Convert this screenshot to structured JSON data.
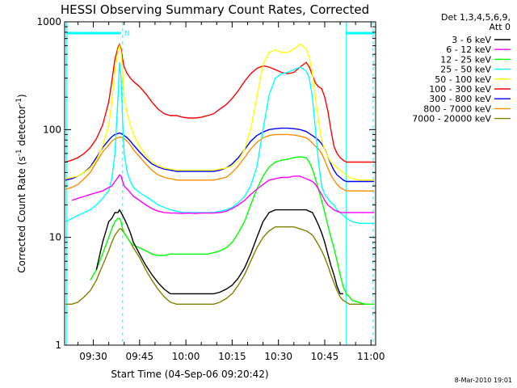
{
  "chart_data": {
    "type": "line",
    "title": "HESSI Observing Summary Count Rates, Corrected",
    "xlabel": "Start Time (04-Sep-06 09:20:42)",
    "ylabel_main": "Corrected Count Rate (s",
    "ylabel_sup": "-1",
    "ylabel_mid": " detector",
    "ylabel_sup2": "-1",
    "ylabel_end": ")",
    "x_ticks": [
      "09:30",
      "09:45",
      "10:00",
      "10:15",
      "10:30",
      "10:45",
      "11:00"
    ],
    "x_tick_minutes": [
      570,
      585,
      600,
      615,
      630,
      645,
      660
    ],
    "xlim_minutes": [
      560.7,
      661.5
    ],
    "ylog": true,
    "ylim": [
      1,
      1000
    ],
    "y_ticks": [
      "1",
      "10",
      "100",
      "1000"
    ],
    "y_tick_values": [
      1,
      10,
      100,
      1000
    ],
    "legend_header": [
      "Det 1,3,4,5,6,9,",
      "Att 0"
    ],
    "footer_date": "8-Mar-2010 19:01",
    "flag_label": "N",
    "flag_bars": [
      [
        561.5,
        579.0
      ],
      [
        651.8,
        661.0
      ]
    ],
    "vlines_solid": [
      561.3,
      652.0
    ],
    "vlines_dashed": [
      579.5,
      660.7
    ],
    "x": [
      561,
      563,
      565,
      567,
      569,
      571,
      573,
      575,
      576,
      577,
      578,
      578.5,
      579,
      579.5,
      580,
      581,
      582,
      583,
      585,
      587,
      589,
      591,
      593,
      595,
      597,
      599,
      601,
      603,
      605,
      607,
      609,
      611,
      613,
      615,
      617,
      619,
      621,
      623,
      625,
      627,
      629,
      631,
      633,
      635,
      637,
      639,
      640,
      641,
      642,
      643,
      644,
      645,
      646,
      647,
      648,
      649,
      650,
      651,
      652,
      653,
      654,
      656,
      658,
      660,
      661
    ],
    "series": [
      {
        "name": "3 - 6 keV",
        "color": "#000000",
        "values": [
          null,
          null,
          null,
          null,
          null,
          5,
          9,
          14,
          15,
          17,
          17,
          18,
          17,
          16,
          15,
          13,
          11,
          9,
          7,
          5.5,
          4.5,
          3.8,
          3.3,
          3.0,
          3.0,
          3.0,
          3.0,
          3.0,
          3.0,
          3.0,
          3.0,
          3.1,
          3.3,
          3.6,
          4.2,
          5.2,
          7,
          10,
          14,
          17,
          18,
          18,
          18,
          18,
          18,
          18,
          17.5,
          17,
          15,
          13,
          11,
          9,
          7,
          5.5,
          4.5,
          3.5,
          3.0,
          3.0,
          null,
          null,
          null,
          null,
          null,
          null,
          null
        ]
      },
      {
        "name": "6 - 12 keV",
        "color": "#ff00ff",
        "values": [
          null,
          22,
          23,
          24,
          25,
          26,
          27,
          29,
          30,
          33,
          36,
          38,
          37,
          33,
          30,
          28,
          26,
          24,
          22,
          20,
          18.5,
          17.5,
          17.0,
          16.8,
          16.8,
          16.7,
          16.8,
          16.7,
          16.8,
          16.8,
          16.8,
          17,
          17.5,
          18.5,
          20,
          22,
          25,
          28,
          31,
          34,
          35,
          36,
          36,
          37,
          37,
          35,
          34,
          33,
          31,
          28,
          25,
          22,
          20,
          19,
          18,
          17.5,
          17,
          17,
          17,
          17,
          17,
          17,
          17,
          17,
          17
        ]
      },
      {
        "name": "12 - 25 keV",
        "color": "#00ff00",
        "values": [
          null,
          null,
          null,
          null,
          4,
          5,
          7,
          10,
          12,
          14,
          15,
          15,
          14,
          12,
          11,
          10,
          9,
          8.5,
          8,
          7.5,
          7,
          6.8,
          6.8,
          7,
          7,
          7,
          7,
          7,
          7,
          7,
          7.2,
          7.5,
          8,
          9,
          11,
          14,
          20,
          28,
          37,
          45,
          50,
          52,
          53,
          55,
          56,
          55,
          50,
          43,
          35,
          28,
          22,
          17,
          13,
          10,
          8,
          6,
          4.5,
          3.5,
          3,
          2.8,
          2.6,
          2.5,
          2.4,
          2.4,
          2.4
        ]
      },
      {
        "name": "25 - 50 keV",
        "color": "#00ffff",
        "values": [
          14,
          15,
          16,
          17,
          18,
          20,
          23,
          27,
          35,
          60,
          200,
          420,
          300,
          120,
          60,
          40,
          33,
          29,
          26,
          24,
          22,
          20,
          19,
          18,
          17.5,
          17,
          17,
          17,
          17,
          17,
          17,
          17.5,
          18,
          19,
          21,
          24,
          30,
          45,
          100,
          210,
          300,
          330,
          340,
          360,
          380,
          350,
          300,
          200,
          100,
          50,
          30,
          25,
          23,
          21,
          20,
          18,
          17,
          16,
          15,
          14.5,
          14,
          13.5,
          13.5,
          13.5,
          13.5
        ]
      },
      {
        "name": "50 - 100 keV",
        "color": "#ffff00",
        "values": [
          35,
          36,
          37,
          40,
          44,
          52,
          70,
          110,
          180,
          350,
          550,
          600,
          520,
          350,
          200,
          140,
          110,
          90,
          70,
          58,
          50,
          46,
          44,
          43,
          42,
          42,
          42,
          42,
          42,
          42,
          42,
          43,
          44,
          46,
          52,
          65,
          100,
          200,
          400,
          520,
          550,
          520,
          520,
          560,
          620,
          560,
          470,
          330,
          200,
          120,
          80,
          65,
          56,
          50,
          47,
          44,
          42,
          40,
          38,
          36,
          35,
          34,
          34,
          34,
          34
        ]
      },
      {
        "name": "100 - 300 keV",
        "color": "#ff0000",
        "values": [
          50,
          52,
          55,
          60,
          68,
          82,
          110,
          180,
          280,
          450,
          580,
          620,
          560,
          450,
          380,
          330,
          300,
          280,
          250,
          215,
          180,
          155,
          140,
          135,
          135,
          130,
          128,
          128,
          130,
          135,
          140,
          155,
          170,
          195,
          230,
          280,
          330,
          370,
          390,
          380,
          360,
          340,
          330,
          340,
          380,
          420,
          380,
          320,
          270,
          250,
          240,
          200,
          150,
          100,
          70,
          60,
          55,
          52,
          50,
          50,
          50,
          50,
          50,
          50,
          50
        ]
      },
      {
        "name": "300 - 800 keV",
        "color": "#0000ff",
        "values": [
          34,
          35,
          37,
          40,
          45,
          55,
          68,
          80,
          86,
          90,
          92,
          93,
          92,
          90,
          88,
          84,
          78,
          72,
          62,
          54,
          48,
          45,
          43,
          42,
          41,
          41,
          41,
          41,
          41,
          41,
          41,
          42,
          44,
          48,
          55,
          65,
          78,
          88,
          95,
          100,
          102,
          103,
          103,
          102,
          100,
          96,
          92,
          88,
          84,
          80,
          74,
          66,
          56,
          48,
          42,
          38,
          36,
          34,
          33,
          33,
          33,
          33,
          33,
          33,
          33
        ]
      },
      {
        "name": "800 - 7000 keV",
        "color": "#ff8c00",
        "values": [
          28,
          29,
          31,
          35,
          40,
          50,
          62,
          72,
          78,
          82,
          84,
          85,
          85,
          84,
          82,
          78,
          72,
          65,
          56,
          48,
          42,
          38,
          36,
          35,
          34,
          34,
          34,
          34,
          34,
          34,
          34,
          35,
          36,
          40,
          46,
          55,
          66,
          76,
          84,
          88,
          90,
          90,
          90,
          89,
          87,
          84,
          80,
          75,
          70,
          66,
          60,
          52,
          44,
          38,
          34,
          31,
          29,
          28,
          27,
          27,
          27,
          27,
          27,
          27,
          27
        ]
      },
      {
        "name": "7000 - 20000 keV",
        "color": "#808000",
        "values": [
          2.4,
          2.4,
          2.5,
          2.8,
          3.2,
          4,
          5.5,
          7.5,
          9,
          10.5,
          11.5,
          12,
          12,
          11.5,
          11,
          10,
          9,
          8,
          6.5,
          5,
          4,
          3.3,
          2.8,
          2.5,
          2.4,
          2.4,
          2.4,
          2.4,
          2.4,
          2.4,
          2.4,
          2.5,
          2.7,
          3,
          3.6,
          4.5,
          6,
          8,
          10,
          11.5,
          12.5,
          12.5,
          12.5,
          12.5,
          12,
          11.5,
          11,
          10.5,
          9.5,
          8.5,
          7.5,
          6.5,
          5.5,
          4.5,
          3.8,
          3.2,
          2.8,
          2.6,
          2.5,
          2.4,
          2.4,
          2.4,
          2.4,
          2.4,
          2.4
        ]
      }
    ]
  }
}
